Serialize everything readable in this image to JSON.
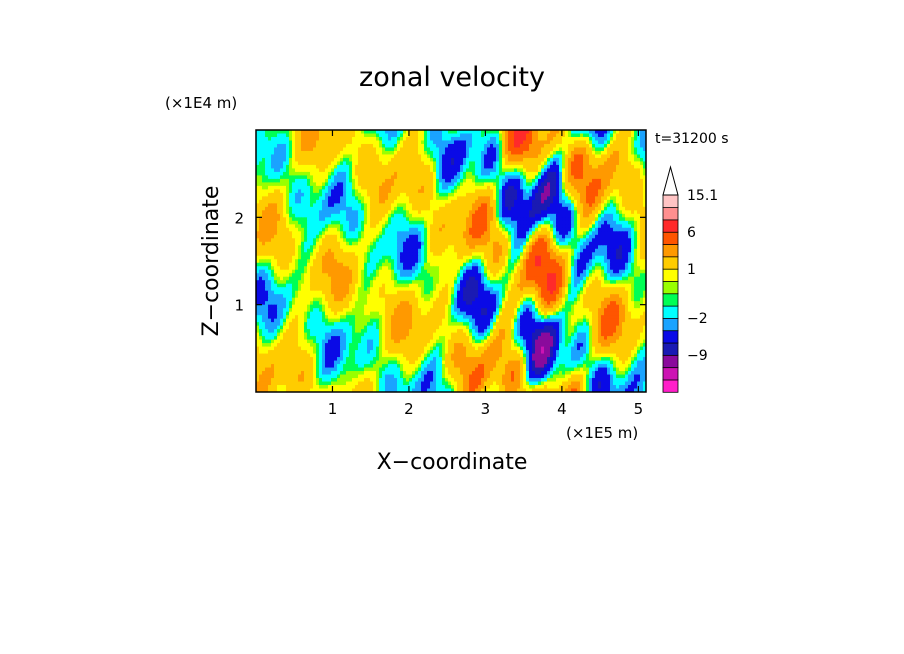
{
  "chart_data": {
    "type": "heatmap",
    "title": "zonal velocity",
    "xlabel": "X−coordinate",
    "ylabel": "Z−coordinate",
    "x_scale_label": "(×1E5 m)",
    "y_scale_label": "(×1E4 m)",
    "time_label": "t=31200 s",
    "xlim": [
      0,
      5.1
    ],
    "ylim": [
      0,
      3.0
    ],
    "x_ticks": [
      1,
      2,
      3,
      4,
      5
    ],
    "y_ticks": [
      1,
      2
    ],
    "colorbar": {
      "levels": [
        -15,
        -12,
        -9,
        -6,
        -4,
        -2,
        -1,
        0,
        0.5,
        1,
        2,
        4,
        6,
        9,
        12,
        15.1
      ],
      "colors": [
        "#ff1fc9",
        "#cc13b3",
        "#8a0a9c",
        "#1a1ab3",
        "#0a0ae6",
        "#1aa3ff",
        "#00ffff",
        "#00ff55",
        "#99ff00",
        "#ffff00",
        "#ffcc00",
        "#ff9900",
        "#ff5500",
        "#ff2a2a",
        "#ff8f8f",
        "#ffc4c4"
      ],
      "tick_labels": [
        {
          "value": 15.1,
          "text": "15.1"
        },
        {
          "value": 6,
          "text": "6"
        },
        {
          "value": 1,
          "text": "1"
        },
        {
          "value": -2,
          "text": "−2"
        },
        {
          "value": -9,
          "text": "−9"
        }
      ],
      "extend": "max"
    }
  }
}
